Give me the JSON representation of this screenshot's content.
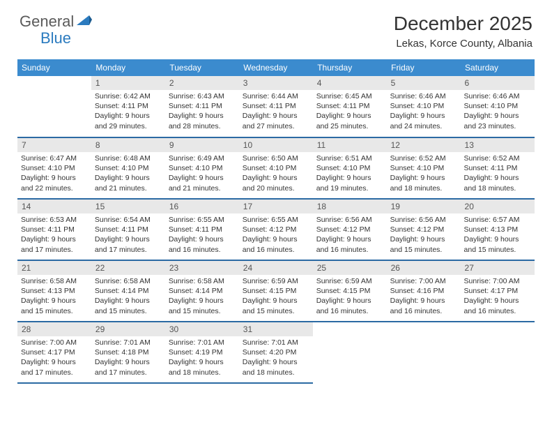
{
  "brand": {
    "part1": "General",
    "part2": "Blue"
  },
  "title": "December 2025",
  "location": "Lekas, Korce County, Albania",
  "weekdays": [
    "Sunday",
    "Monday",
    "Tuesday",
    "Wednesday",
    "Thursday",
    "Friday",
    "Saturday"
  ],
  "colors": {
    "header_bg": "#3b8bce",
    "header_text": "#ffffff",
    "daynum_bg": "#e8e8e8",
    "row_border": "#2b6aa3",
    "logo_gray": "#5a5a5a",
    "logo_blue": "#2b7bbf"
  },
  "weeks": [
    [
      null,
      {
        "n": "1",
        "sr": "6:42 AM",
        "ss": "4:11 PM",
        "dl": "9 hours and 29 minutes."
      },
      {
        "n": "2",
        "sr": "6:43 AM",
        "ss": "4:11 PM",
        "dl": "9 hours and 28 minutes."
      },
      {
        "n": "3",
        "sr": "6:44 AM",
        "ss": "4:11 PM",
        "dl": "9 hours and 27 minutes."
      },
      {
        "n": "4",
        "sr": "6:45 AM",
        "ss": "4:11 PM",
        "dl": "9 hours and 25 minutes."
      },
      {
        "n": "5",
        "sr": "6:46 AM",
        "ss": "4:10 PM",
        "dl": "9 hours and 24 minutes."
      },
      {
        "n": "6",
        "sr": "6:46 AM",
        "ss": "4:10 PM",
        "dl": "9 hours and 23 minutes."
      }
    ],
    [
      {
        "n": "7",
        "sr": "6:47 AM",
        "ss": "4:10 PM",
        "dl": "9 hours and 22 minutes."
      },
      {
        "n": "8",
        "sr": "6:48 AM",
        "ss": "4:10 PM",
        "dl": "9 hours and 21 minutes."
      },
      {
        "n": "9",
        "sr": "6:49 AM",
        "ss": "4:10 PM",
        "dl": "9 hours and 21 minutes."
      },
      {
        "n": "10",
        "sr": "6:50 AM",
        "ss": "4:10 PM",
        "dl": "9 hours and 20 minutes."
      },
      {
        "n": "11",
        "sr": "6:51 AM",
        "ss": "4:10 PM",
        "dl": "9 hours and 19 minutes."
      },
      {
        "n": "12",
        "sr": "6:52 AM",
        "ss": "4:10 PM",
        "dl": "9 hours and 18 minutes."
      },
      {
        "n": "13",
        "sr": "6:52 AM",
        "ss": "4:11 PM",
        "dl": "9 hours and 18 minutes."
      }
    ],
    [
      {
        "n": "14",
        "sr": "6:53 AM",
        "ss": "4:11 PM",
        "dl": "9 hours and 17 minutes."
      },
      {
        "n": "15",
        "sr": "6:54 AM",
        "ss": "4:11 PM",
        "dl": "9 hours and 17 minutes."
      },
      {
        "n": "16",
        "sr": "6:55 AM",
        "ss": "4:11 PM",
        "dl": "9 hours and 16 minutes."
      },
      {
        "n": "17",
        "sr": "6:55 AM",
        "ss": "4:12 PM",
        "dl": "9 hours and 16 minutes."
      },
      {
        "n": "18",
        "sr": "6:56 AM",
        "ss": "4:12 PM",
        "dl": "9 hours and 16 minutes."
      },
      {
        "n": "19",
        "sr": "6:56 AM",
        "ss": "4:12 PM",
        "dl": "9 hours and 15 minutes."
      },
      {
        "n": "20",
        "sr": "6:57 AM",
        "ss": "4:13 PM",
        "dl": "9 hours and 15 minutes."
      }
    ],
    [
      {
        "n": "21",
        "sr": "6:58 AM",
        "ss": "4:13 PM",
        "dl": "9 hours and 15 minutes."
      },
      {
        "n": "22",
        "sr": "6:58 AM",
        "ss": "4:14 PM",
        "dl": "9 hours and 15 minutes."
      },
      {
        "n": "23",
        "sr": "6:58 AM",
        "ss": "4:14 PM",
        "dl": "9 hours and 15 minutes."
      },
      {
        "n": "24",
        "sr": "6:59 AM",
        "ss": "4:15 PM",
        "dl": "9 hours and 15 minutes."
      },
      {
        "n": "25",
        "sr": "6:59 AM",
        "ss": "4:15 PM",
        "dl": "9 hours and 16 minutes."
      },
      {
        "n": "26",
        "sr": "7:00 AM",
        "ss": "4:16 PM",
        "dl": "9 hours and 16 minutes."
      },
      {
        "n": "27",
        "sr": "7:00 AM",
        "ss": "4:17 PM",
        "dl": "9 hours and 16 minutes."
      }
    ],
    [
      {
        "n": "28",
        "sr": "7:00 AM",
        "ss": "4:17 PM",
        "dl": "9 hours and 17 minutes."
      },
      {
        "n": "29",
        "sr": "7:01 AM",
        "ss": "4:18 PM",
        "dl": "9 hours and 17 minutes."
      },
      {
        "n": "30",
        "sr": "7:01 AM",
        "ss": "4:19 PM",
        "dl": "9 hours and 18 minutes."
      },
      {
        "n": "31",
        "sr": "7:01 AM",
        "ss": "4:20 PM",
        "dl": "9 hours and 18 minutes."
      },
      null,
      null,
      null
    ]
  ],
  "labels": {
    "sunrise": "Sunrise:",
    "sunset": "Sunset:",
    "daylight": "Daylight:"
  }
}
